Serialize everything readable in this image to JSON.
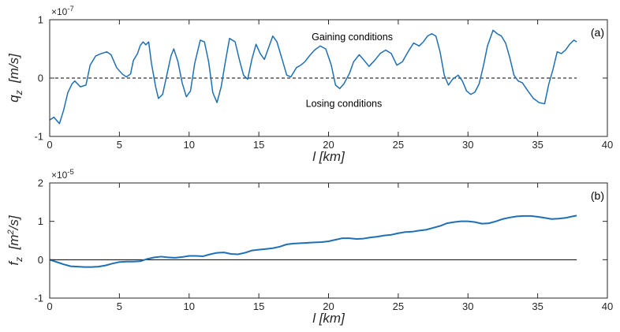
{
  "colors": {
    "series": "#1f6fb4",
    "reference": "#000000",
    "axis": "#262626",
    "background": "#ffffff"
  },
  "chart_data": [
    {
      "type": "line",
      "panel_label": "(a)",
      "xlabel": "l [km]",
      "ylabel_main": "q",
      "ylabel_sub": "z",
      "ylabel_unit": "[m/s]",
      "exponent_base": "×10",
      "exponent_power": "-7",
      "xlim": [
        0,
        40
      ],
      "ylim": [
        -1,
        1
      ],
      "xticks": [
        0,
        5,
        10,
        15,
        20,
        25,
        30,
        35,
        40
      ],
      "yticks": [
        -1,
        0,
        1
      ],
      "grid": false,
      "annotations": [
        {
          "text": "Gaining conditions",
          "x": 21.7,
          "y": 0.7
        },
        {
          "text": "Losing conditions",
          "x": 21.1,
          "y": -0.44
        }
      ],
      "reference_line": {
        "y": 0,
        "style": "dashed",
        "x_range": [
          0,
          37.8
        ]
      },
      "series": [
        {
          "x": [
            0,
            0.3,
            0.7,
            1.0,
            1.3,
            1.6,
            1.8,
            2.2,
            2.6,
            2.9,
            3.3,
            3.7,
            4.1,
            4.4,
            4.8,
            5.2,
            5.5,
            5.8,
            6.0,
            6.3,
            6.5,
            6.7,
            6.9,
            7.1,
            7.3,
            7.6,
            7.8,
            8.1,
            8.4,
            8.7,
            8.9,
            9.2,
            9.5,
            9.8,
            10.1,
            10.4,
            10.8,
            11.1,
            11.4,
            11.7,
            12.0,
            12.3,
            12.6,
            12.9,
            13.3,
            13.6,
            13.9,
            14.2,
            14.5,
            14.8,
            15.1,
            15.4,
            15.7,
            16.0,
            16.3,
            16.7,
            17.0,
            17.3,
            17.7,
            18.0,
            18.3,
            18.7,
            19.0,
            19.4,
            19.8,
            20.2,
            20.5,
            20.8,
            21.1,
            21.5,
            21.8,
            22.2,
            22.5,
            22.9,
            23.3,
            23.7,
            24.1,
            24.5,
            24.9,
            25.3,
            25.7,
            26.1,
            26.5,
            26.8,
            27.1,
            27.4,
            27.7,
            28.0,
            28.3,
            28.6,
            28.9,
            29.3,
            29.6,
            29.9,
            30.2,
            30.5,
            30.8,
            31.1,
            31.4,
            31.8,
            32.1,
            32.4,
            32.7,
            33.0,
            33.3,
            33.6,
            33.9,
            34.3,
            34.7,
            35.1,
            35.5,
            35.8,
            36.1,
            36.4,
            36.7,
            37.0,
            37.3,
            37.6,
            37.8
          ],
          "values": [
            -0.72,
            -0.67,
            -0.78,
            -0.55,
            -0.25,
            -0.1,
            -0.05,
            -0.15,
            -0.12,
            0.22,
            0.38,
            0.42,
            0.45,
            0.4,
            0.18,
            0.07,
            0.02,
            0.07,
            0.3,
            0.42,
            0.56,
            0.62,
            0.57,
            0.62,
            0.25,
            -0.15,
            -0.35,
            -0.28,
            0.05,
            0.38,
            0.5,
            0.28,
            -0.08,
            -0.32,
            -0.22,
            0.25,
            0.65,
            0.62,
            0.28,
            -0.25,
            -0.42,
            -0.15,
            0.28,
            0.68,
            0.62,
            0.32,
            0.05,
            -0.02,
            0.32,
            0.58,
            0.42,
            0.32,
            0.52,
            0.72,
            0.62,
            0.3,
            0.05,
            0.02,
            0.18,
            0.22,
            0.28,
            0.4,
            0.48,
            0.55,
            0.5,
            0.22,
            -0.12,
            -0.18,
            -0.1,
            0.08,
            0.28,
            0.4,
            0.32,
            0.2,
            0.3,
            0.42,
            0.48,
            0.42,
            0.22,
            0.28,
            0.45,
            0.6,
            0.55,
            0.62,
            0.72,
            0.76,
            0.72,
            0.45,
            0.05,
            -0.12,
            -0.02,
            0.05,
            -0.05,
            -0.22,
            -0.28,
            -0.24,
            -0.1,
            0.2,
            0.55,
            0.82,
            0.76,
            0.72,
            0.6,
            0.35,
            0.05,
            -0.05,
            -0.08,
            -0.22,
            -0.35,
            -0.42,
            -0.44,
            -0.1,
            0.15,
            0.45,
            0.42,
            0.48,
            0.58,
            0.65,
            0.62
          ]
        }
      ]
    },
    {
      "type": "line",
      "panel_label": "(b)",
      "xlabel": "l [km]",
      "ylabel_main": "f",
      "ylabel_sub": "z",
      "ylabel_unit_pre": "[m",
      "ylabel_unit_sup": "2",
      "ylabel_unit_post": "/s]",
      "exponent_base": "×10",
      "exponent_power": "-5",
      "xlim": [
        0,
        40
      ],
      "ylim": [
        -1,
        2
      ],
      "xticks": [
        0,
        5,
        10,
        15,
        20,
        25,
        30,
        35,
        40
      ],
      "yticks": [
        -1,
        0,
        1,
        2
      ],
      "grid": false,
      "reference_line": {
        "y": 0,
        "style": "solid",
        "x_range": [
          0,
          37.8
        ]
      },
      "series": [
        {
          "x": [
            0,
            0.5,
            1.0,
            1.5,
            2.0,
            2.5,
            3.0,
            3.5,
            4.0,
            4.5,
            5.0,
            5.5,
            6.0,
            6.5,
            7.0,
            7.5,
            8.0,
            8.5,
            9.0,
            9.5,
            10.0,
            10.5,
            11.0,
            11.5,
            12.0,
            12.5,
            13.0,
            13.5,
            14.0,
            14.5,
            15.0,
            15.5,
            16.0,
            16.5,
            17.0,
            17.5,
            18.0,
            18.5,
            19.0,
            19.5,
            20.0,
            20.5,
            21.0,
            21.5,
            22.0,
            22.5,
            23.0,
            23.5,
            24.0,
            24.5,
            25.0,
            25.5,
            26.0,
            26.5,
            27.0,
            27.5,
            28.0,
            28.5,
            29.0,
            29.5,
            30.0,
            30.5,
            31.0,
            31.5,
            32.0,
            32.5,
            33.0,
            33.5,
            34.0,
            34.5,
            35.0,
            35.5,
            36.0,
            36.5,
            37.0,
            37.5,
            37.8
          ],
          "values": [
            0.0,
            -0.06,
            -0.12,
            -0.17,
            -0.18,
            -0.19,
            -0.19,
            -0.18,
            -0.15,
            -0.1,
            -0.06,
            -0.05,
            -0.05,
            -0.04,
            0.02,
            0.06,
            0.08,
            0.06,
            0.05,
            0.07,
            0.1,
            0.1,
            0.09,
            0.14,
            0.18,
            0.19,
            0.15,
            0.14,
            0.18,
            0.24,
            0.26,
            0.28,
            0.3,
            0.34,
            0.4,
            0.42,
            0.43,
            0.44,
            0.45,
            0.46,
            0.48,
            0.52,
            0.56,
            0.56,
            0.54,
            0.55,
            0.58,
            0.6,
            0.63,
            0.65,
            0.69,
            0.72,
            0.73,
            0.76,
            0.78,
            0.83,
            0.88,
            0.95,
            0.98,
            1.0,
            1.0,
            0.98,
            0.94,
            0.95,
            1.0,
            1.06,
            1.1,
            1.13,
            1.14,
            1.14,
            1.12,
            1.09,
            1.06,
            1.07,
            1.09,
            1.13,
            1.15
          ]
        }
      ]
    }
  ]
}
